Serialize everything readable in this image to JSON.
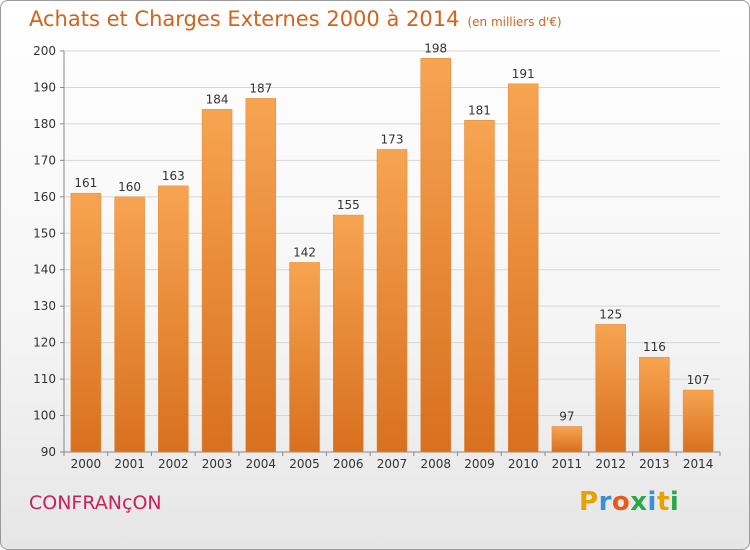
{
  "header": {
    "title": "Achats et Charges Externes 2000 à 2014",
    "unit": "(en milliers d'€)"
  },
  "footer": {
    "town": "CONFRANçON",
    "logo_letters": [
      "P",
      "r",
      "o",
      "x",
      "i",
      "t",
      "i"
    ],
    "logo_colors": [
      "#e8a200",
      "#3a8fd8",
      "#e65a1e",
      "#2aa84a",
      "#3a8fd8",
      "#e8a200",
      "#2aa84a"
    ]
  },
  "chart_data": {
    "type": "bar",
    "title": "Achats et Charges Externes 2000 à 2014",
    "subtitle": "(en milliers d'€)",
    "categories": [
      "2000",
      "2001",
      "2002",
      "2003",
      "2004",
      "2005",
      "2006",
      "2007",
      "2008",
      "2009",
      "2010",
      "2011",
      "2012",
      "2013",
      "2014"
    ],
    "values": [
      161,
      160,
      163,
      184,
      187,
      142,
      155,
      173,
      198,
      181,
      191,
      97,
      125,
      116,
      107
    ],
    "ylim": [
      90,
      200
    ],
    "yticks": [
      90,
      100,
      110,
      120,
      130,
      140,
      150,
      160,
      170,
      180,
      190,
      200
    ],
    "grid": true,
    "bar_color_top": "#f7a451",
    "bar_color_bottom": "#d8701f"
  }
}
